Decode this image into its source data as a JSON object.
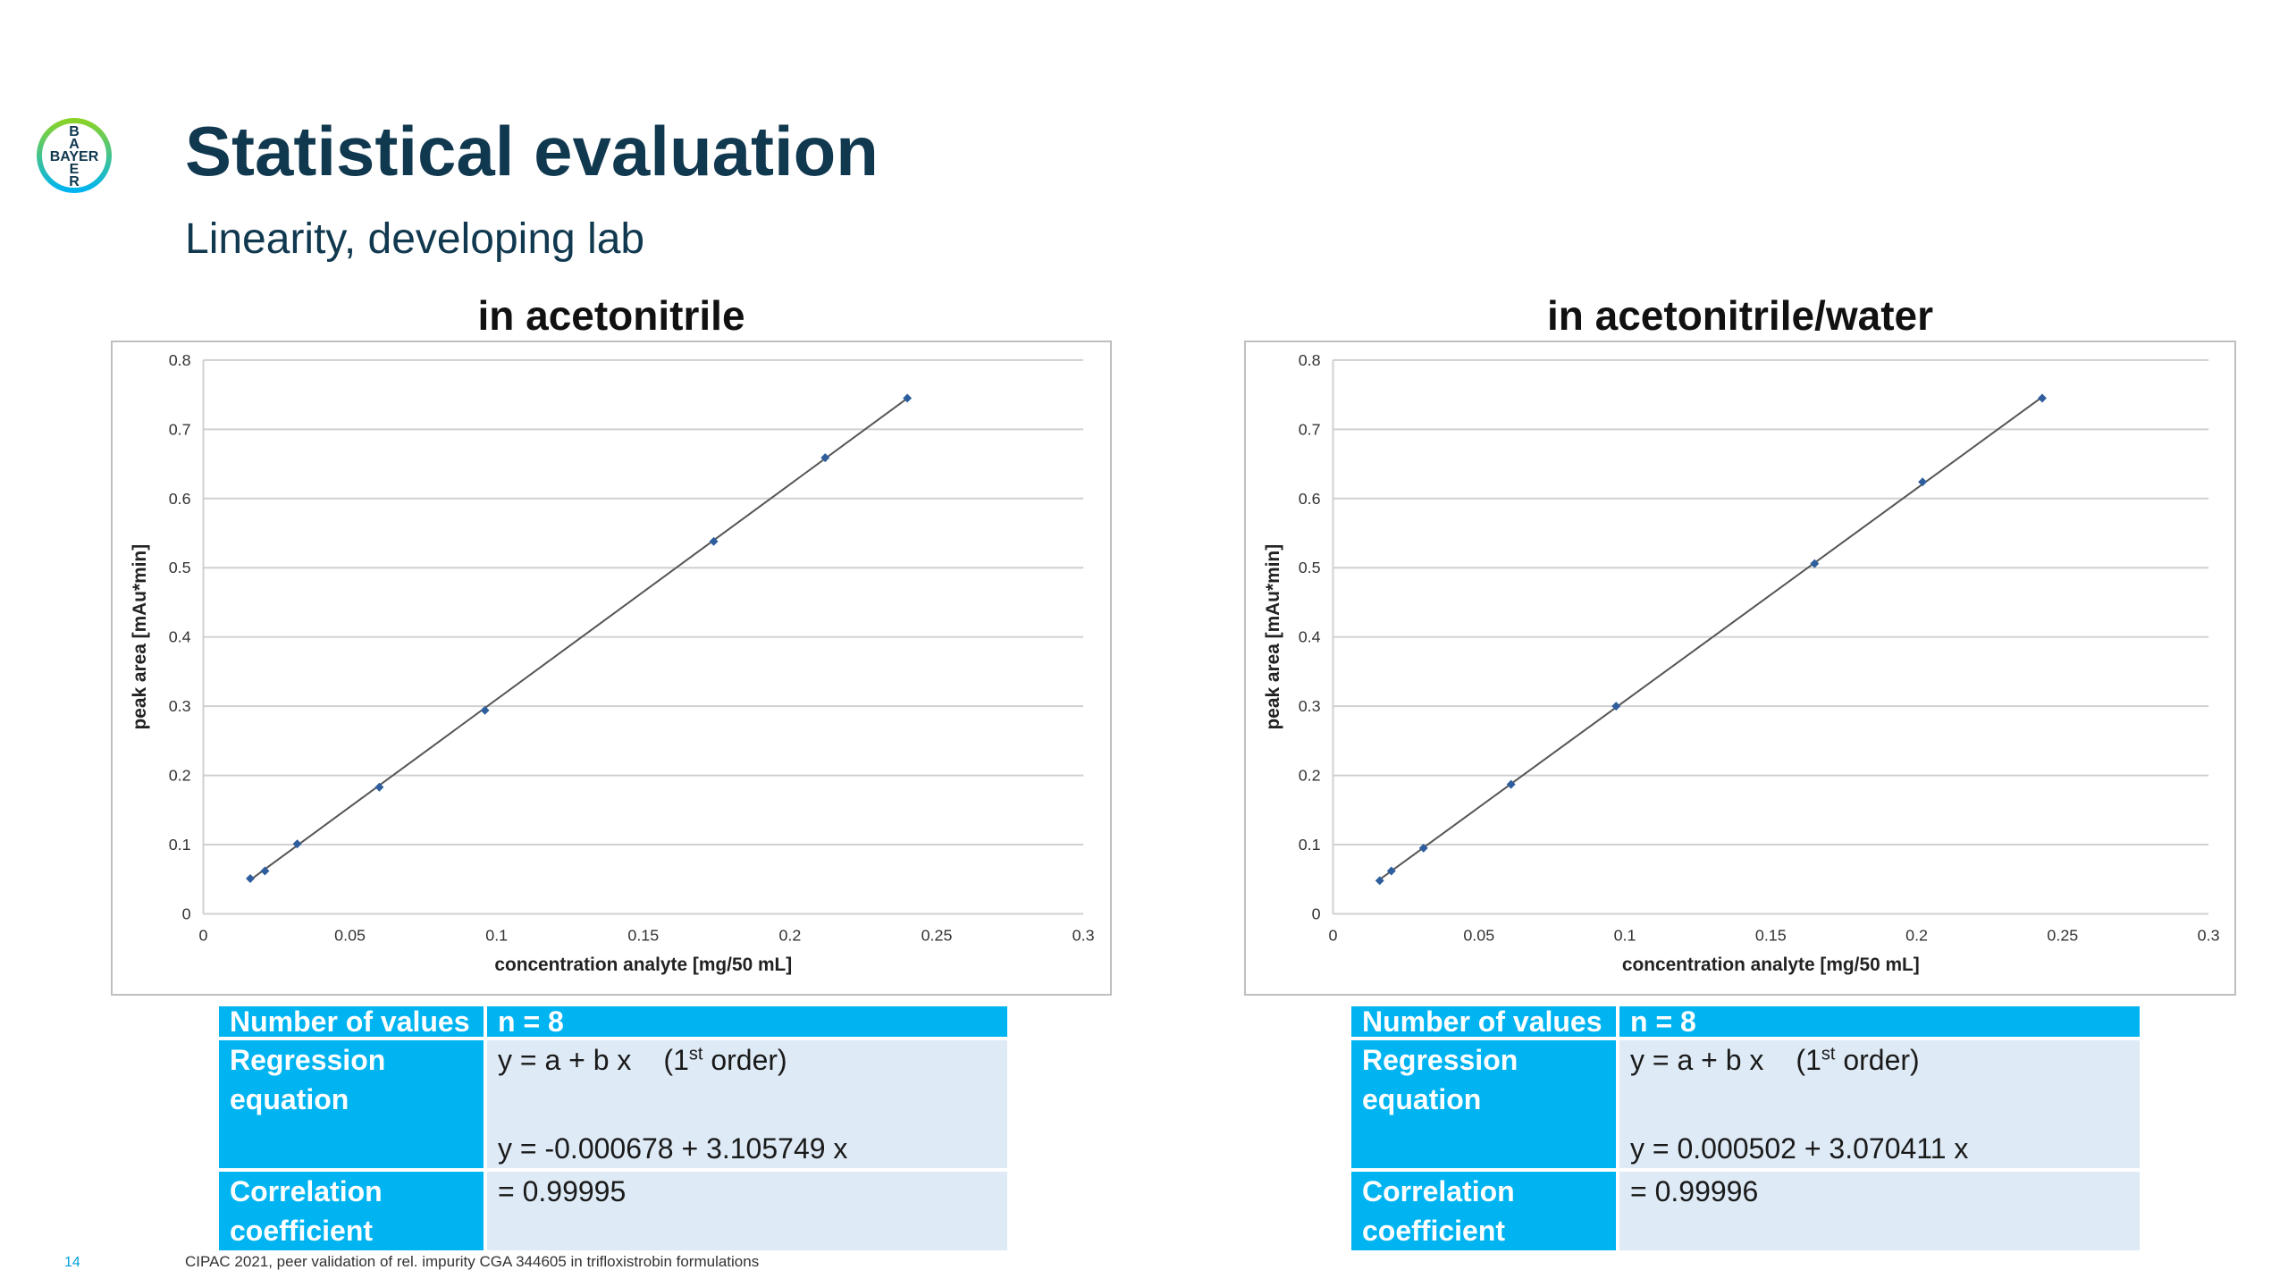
{
  "header": {
    "logo_text": "BAYER",
    "title": "Statistical evaluation",
    "subtitle": "Linearity, developing lab"
  },
  "chart_data": [
    {
      "type": "scatter",
      "title": "in acetonitrile",
      "xlabel": "concentration analyte [mg/50 mL]",
      "ylabel": "peak area [mAu*min]",
      "xlim": [
        0,
        0.3
      ],
      "ylim": [
        0,
        0.8
      ],
      "xticks": [
        "0",
        "0.05",
        "0.1",
        "0.15",
        "0.2",
        "0.25",
        "0.3"
      ],
      "yticks": [
        "0",
        "0.1",
        "0.2",
        "0.3",
        "0.4",
        "0.5",
        "0.6",
        "0.7",
        "0.8"
      ],
      "grid": "horizontal",
      "legend": "none",
      "series": [
        {
          "x": [
            0.016,
            0.021,
            0.032,
            0.06,
            0.096,
            0.174,
            0.212,
            0.24
          ],
          "y": [
            0.051,
            0.062,
            0.101,
            0.183,
            0.294,
            0.538,
            0.659,
            0.745
          ],
          "trendline": {
            "intercept": -0.000678,
            "slope": 3.105749
          }
        }
      ],
      "colors": {
        "marker": "#2e5e9e",
        "trendline": "#555555",
        "grid": "#d0d0d0"
      }
    },
    {
      "type": "scatter",
      "title": "in acetonitrile/water",
      "xlabel": "concentration analyte [mg/50 mL]",
      "ylabel": "peak area [mAu*min]",
      "xlim": [
        0,
        0.3
      ],
      "ylim": [
        0,
        0.8
      ],
      "xticks": [
        "0",
        "0.05",
        "0.1",
        "0.15",
        "0.2",
        "0.25",
        "0.3"
      ],
      "yticks": [
        "0",
        "0.1",
        "0.2",
        "0.3",
        "0.4",
        "0.5",
        "0.6",
        "0.7",
        "0.8"
      ],
      "grid": "horizontal",
      "legend": "none",
      "series": [
        {
          "x": [
            0.016,
            0.02,
            0.031,
            0.061,
            0.097,
            0.165,
            0.202,
            0.243
          ],
          "y": [
            0.048,
            0.062,
            0.095,
            0.187,
            0.3,
            0.506,
            0.624,
            0.745
          ],
          "trendline": {
            "intercept": 0.000502,
            "slope": 3.070411
          }
        }
      ],
      "colors": {
        "marker": "#2e5e9e",
        "trendline": "#555555",
        "grid": "#d0d0d0"
      }
    }
  ],
  "tables": [
    {
      "count_label": "Number of values",
      "count_value": "n = 8",
      "regression_label_1": "Regression",
      "regression_label_2": "equation",
      "model_prefix": "y = a + b x",
      "order_pre": "(1",
      "order_sup": "st",
      "order_post": " order)",
      "equation": "y = -0.000678 + 3.105749 x",
      "correlation_label_1": "Correlation",
      "correlation_label_2": "coefficient",
      "correlation_value": "= 0.99995"
    },
    {
      "count_label": "Number of values",
      "count_value": "n = 8",
      "regression_label_1": "Regression",
      "regression_label_2": "equation",
      "model_prefix": "y = a + b x",
      "order_pre": "(1",
      "order_sup": "st",
      "order_post": " order)",
      "equation": "y = 0.000502 + 3.070411 x",
      "correlation_label_1": "Correlation",
      "correlation_label_2": "coefficient",
      "correlation_value": "= 0.99996"
    }
  ],
  "footer": {
    "page_number": "14",
    "text": "CIPAC 2021, peer validation of rel. impurity CGA 344605 in trifloxistrobin formulations"
  },
  "colors": {
    "brand_blue": "#00b4f1",
    "brand_green": "#89d329",
    "title_navy": "#10384f",
    "table_value_bg": "#deeaf5"
  }
}
